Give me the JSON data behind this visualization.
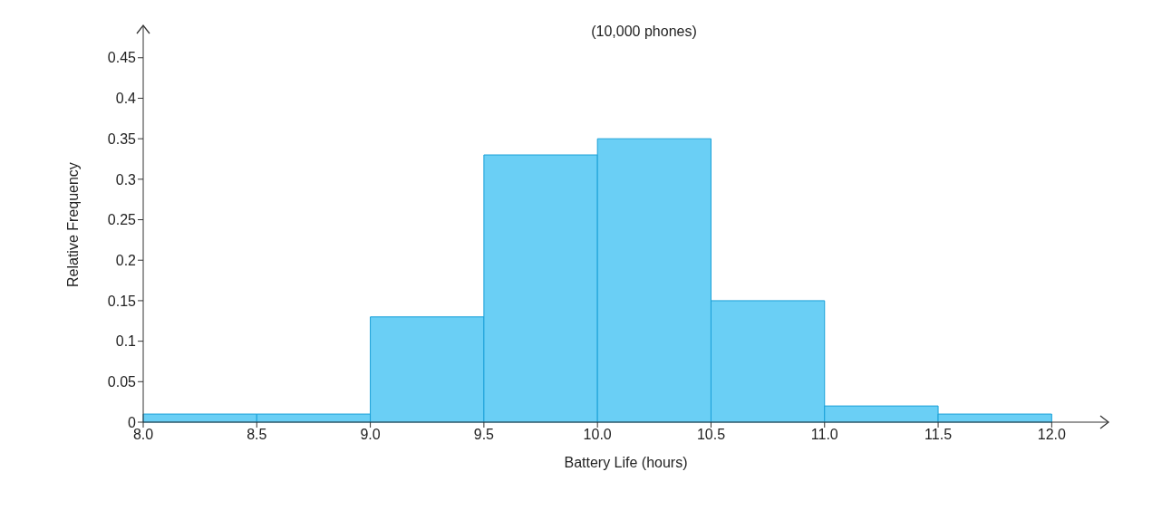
{
  "chart_data": {
    "type": "histogram",
    "title": "(10,000 phones)",
    "xlabel": "Battery Life (hours)",
    "ylabel": "Relative Frequency",
    "bins": [
      8.0,
      8.5,
      9.0,
      9.5,
      10.0,
      10.5,
      11.0,
      11.5,
      12.0
    ],
    "values": [
      0.01,
      0.01,
      0.13,
      0.33,
      0.35,
      0.15,
      0.02,
      0.01
    ],
    "color": "#6acff5",
    "xlim": [
      8.0,
      12.25
    ],
    "xticks": [
      {
        "value": 8,
        "label": "8.0"
      },
      8.5,
      {
        "value": 9,
        "label": "9.0"
      },
      9.5,
      {
        "value": 10,
        "label": "10.0"
      },
      10.5,
      {
        "value": 11,
        "label": "11.0"
      },
      11.5,
      {
        "value": 12,
        "label": "12.0"
      }
    ],
    "ylim": [
      0,
      0.49
    ],
    "yticks": [
      0,
      0.05,
      0.1,
      0.15,
      0.2,
      0.25,
      0.3,
      0.35,
      0.4,
      0.45
    ],
    "grid": false
  }
}
